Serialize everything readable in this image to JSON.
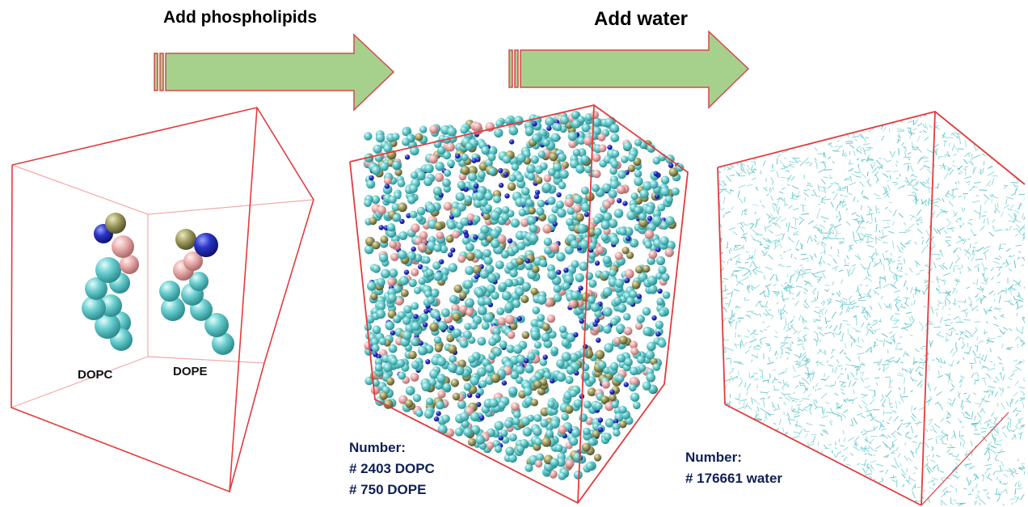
{
  "steps": [
    {
      "title": "Add phospholipids"
    },
    {
      "title": "Add water"
    }
  ],
  "colors": {
    "box": "#e33b3b",
    "arrow_fill": "#a6d18c",
    "arrow_stroke": "#d24a4a",
    "tail_bead": "#5fc6c8",
    "head_phosphate": "#9d9a5f",
    "choline_bead": "#2b35c9",
    "glycerol_bead": "#e9a9a9",
    "water": "#6fcfd0",
    "count_text": "#0f2056"
  },
  "panel1": {
    "molecules": [
      "DOPC",
      "DOPE"
    ]
  },
  "panel2": {
    "count_header": "Number:",
    "counts": [
      "# 2403 DOPC",
      "# 750 DOPE"
    ]
  },
  "panel3": {
    "count_header": "Number:",
    "counts": [
      "# 176661 water"
    ]
  }
}
